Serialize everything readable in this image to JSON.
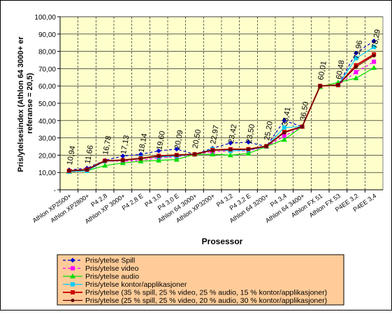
{
  "chart_data": {
    "type": "line",
    "title": "",
    "xlabel": "Prosessor",
    "ylabel": "Pris/ytelsesindex (Athlon 64 3000+ er referanse = 20,5)",
    "ylabel_lines": [
      "Pris/ytelsesindex (Athlon 64 3000+ er",
      "referanse = 20,5)"
    ],
    "ylim": [
      0,
      100
    ],
    "ytick_labels": [
      "-",
      "10,00",
      "20,00",
      "30,00",
      "40,00",
      "50,00",
      "60,00",
      "70,00",
      "80,00",
      "90,00",
      "100,00"
    ],
    "grid": true,
    "legend_position": "bottom",
    "categories": [
      "Athlon XP2500+",
      "Athlon XP2800+",
      "P4 2,8",
      "Athlon XP 3000+",
      "P4 2,8 E",
      "P4 3,0",
      "P4 3,0 E",
      "Athlon 64 3000+",
      "Athlon XP3200+",
      "P4 3,2",
      "P4 3,2 E",
      "Athlon 64 3200+",
      "P4 3,4",
      "Athlon 64 3400+",
      "Athlon FX 51",
      "Athlon FX 53",
      "P4EE 3,2",
      "P4EE 3,4"
    ],
    "data_labels": [
      "10,94",
      "11,66",
      "16,78",
      "17,13",
      "18,14",
      "19,60",
      "20,09",
      "20,50",
      "22,97",
      "23,42",
      "23,50",
      "25,20",
      "33,41",
      "36,50",
      "60,01",
      "60,48",
      "71,96",
      "78,29"
    ],
    "series": [
      {
        "name": "Pris/ytelse Spill",
        "color": "#0000cc",
        "values": [
          11.5,
          12.5,
          17.0,
          19.5,
          20.5,
          22.5,
          23.5,
          20.5,
          24.0,
          27.0,
          27.5,
          25.0,
          40.0,
          36.5,
          60.0,
          60.5,
          79.0,
          86.0
        ]
      },
      {
        "name": "Pris/ytelse video",
        "color": "#ff00ff",
        "values": [
          10.5,
          11.0,
          16.5,
          16.5,
          17.0,
          18.5,
          19.0,
          20.5,
          22.0,
          22.5,
          22.5,
          25.0,
          31.0,
          36.5,
          60.0,
          60.5,
          68.0,
          74.0
        ]
      },
      {
        "name": "Pris/ytelse audio",
        "color": "#00dd00",
        "values": [
          10.5,
          11.0,
          14.0,
          15.5,
          16.5,
          17.0,
          17.5,
          20.5,
          20.5,
          20.0,
          21.0,
          25.0,
          29.0,
          36.5,
          59.5,
          62.0,
          64.5,
          70.5
        ]
      },
      {
        "name": "Pris/ytelse kontor/applikasjoner",
        "color": "#00ccff",
        "values": [
          10.5,
          11.0,
          16.5,
          17.0,
          18.5,
          19.0,
          19.5,
          20.5,
          23.5,
          22.5,
          23.0,
          25.0,
          36.0,
          36.5,
          60.0,
          60.5,
          76.0,
          82.5
        ]
      },
      {
        "name": "Pris/ytelse (35 % spill, 25 % video, 25 % audio, 15 % kontor/applikasjoner)",
        "color": "#cc0000",
        "values": [
          10.94,
          11.66,
          16.78,
          17.13,
          18.14,
          19.6,
          20.09,
          20.5,
          22.97,
          23.42,
          23.5,
          25.2,
          33.41,
          36.5,
          60.01,
          60.48,
          71.96,
          78.29
        ]
      },
      {
        "name": "Pris/ytelse (25 % spill, 25 % video, 20 % audio, 30 % kontor/applikasjoner)",
        "color": "#660000",
        "values": [
          10.9,
          11.6,
          16.7,
          17.1,
          18.0,
          19.4,
          19.9,
          20.5,
          22.8,
          23.2,
          23.4,
          25.2,
          33.0,
          36.5,
          60.0,
          60.5,
          71.0,
          77.5
        ]
      }
    ]
  }
}
